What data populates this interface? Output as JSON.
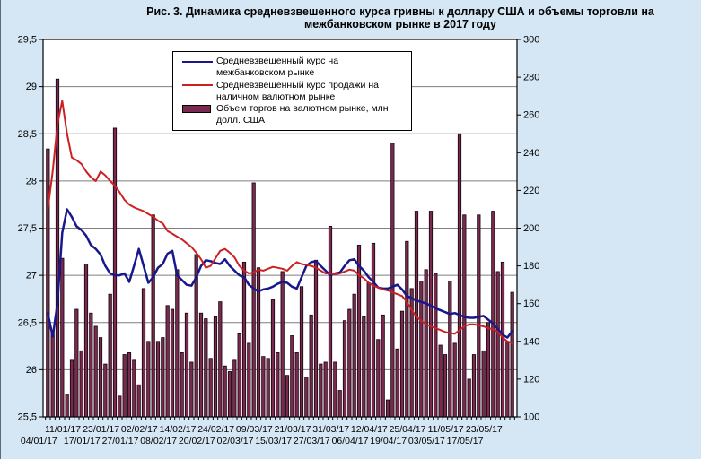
{
  "title": "Рис. 3. Динамика средневзвешенного курса гривны к доллару США и объемы торговли на межбанковском рынке в 2017 году",
  "legend": {
    "interbank_rate": "Средневзвешенный курс на межбанковском рынке",
    "cash_rate": "Средневзвешенный курс продажи на наличном валютном рынке",
    "volume": "Объем торгов на валютном рынке, млн долл. США"
  },
  "colors": {
    "background": "#d5e7f4",
    "plot_background": "#ffffff",
    "gridline": "#7f7f7f",
    "axis": "#000000",
    "interbank_line": "#18188c",
    "cash_line": "#cc2023",
    "volume_bar_fill": "#7a2950",
    "volume_bar_border": "#120309"
  },
  "chart_data": {
    "type": "combo: bar + 2 lines (dual axis)",
    "title": "Рис. 3. Динамика средневзвешенного курса гривны к доллару США и объемы торговли на межбанковском рынке в 2017 году",
    "n_points": 98,
    "left_axis": {
      "min": 25.5,
      "max": 29.5,
      "step": 0.5,
      "labels": [
        "29,5",
        "29",
        "28,5",
        "28",
        "27,5",
        "27",
        "26,5",
        "26",
        "25,5"
      ]
    },
    "right_axis": {
      "min": 100,
      "max": 300,
      "step": 20,
      "labels": [
        "300",
        "280",
        "260",
        "240",
        "220",
        "200",
        "180",
        "160",
        "140",
        "120",
        "100"
      ]
    },
    "x_labels": [
      "04/01/17",
      "11/01/17",
      "17/01/17",
      "23/01/17",
      "27/01/17",
      "02/02/17",
      "08/02/17",
      "14/02/17",
      "20/02/17",
      "24/02/17",
      "02/03/17",
      "09/03/17",
      "15/03/17",
      "21/03/17",
      "27/03/17",
      "31/03/17",
      "06/04/17",
      "12/04/17",
      "19/04/17",
      "25/04/17",
      "03/05/17",
      "11/05/17",
      "17/05/17",
      "23/05/17"
    ],
    "x_label_indices": [
      0,
      5,
      9,
      13,
      17,
      21,
      25,
      29,
      33,
      37,
      41,
      45,
      49,
      53,
      57,
      61,
      65,
      69,
      73,
      77,
      81,
      85,
      89,
      93
    ],
    "x_label_rows": [
      "lower",
      "upper",
      "lower",
      "upper",
      "lower",
      "upper",
      "lower",
      "upper",
      "lower",
      "upper",
      "lower",
      "upper",
      "lower",
      "upper",
      "lower",
      "upper",
      "lower",
      "upper",
      "lower",
      "upper",
      "lower",
      "upper",
      "lower",
      "upper"
    ],
    "series": [
      {
        "name": "Средневзвешенный курс на межбанковском рынке",
        "type": "line",
        "axis": "left",
        "color": "#18188c",
        "width": 2.5,
        "values": [
          26.6,
          26.35,
          26.7,
          27.45,
          27.7,
          27.62,
          27.52,
          27.48,
          27.42,
          27.32,
          27.28,
          27.22,
          27.1,
          27.02,
          27.0,
          27.0,
          27.02,
          26.93,
          27.1,
          27.28,
          27.1,
          26.92,
          26.98,
          27.08,
          27.12,
          27.23,
          27.26,
          27.0,
          26.95,
          26.9,
          26.89,
          26.98,
          27.1,
          27.16,
          27.15,
          27.13,
          27.12,
          27.17,
          27.1,
          27.05,
          27.0,
          26.98,
          26.9,
          26.86,
          26.83,
          26.85,
          26.86,
          26.88,
          26.91,
          26.93,
          26.92,
          26.88,
          26.86,
          26.98,
          27.1,
          27.14,
          27.15,
          27.1,
          27.05,
          27.0,
          27.02,
          27.03,
          27.1,
          27.16,
          27.17,
          27.1,
          27.05,
          26.98,
          26.93,
          26.87,
          26.86,
          26.86,
          26.88,
          26.9,
          26.85,
          26.78,
          26.76,
          26.73,
          26.72,
          26.7,
          26.68,
          26.65,
          26.63,
          26.61,
          26.59,
          26.6,
          26.58,
          26.56,
          26.55,
          26.55,
          26.56,
          26.57,
          26.53,
          26.49,
          26.43,
          26.37,
          26.34,
          26.41
        ]
      },
      {
        "name": "Средневзвешенный курс продажи на наличном валютном рынке",
        "type": "line",
        "axis": "left",
        "color": "#cc2023",
        "width": 2,
        "values": [
          27.7,
          28.1,
          28.6,
          28.85,
          28.5,
          28.25,
          28.22,
          28.18,
          28.1,
          28.04,
          28.0,
          28.1,
          28.06,
          28.0,
          27.95,
          27.88,
          27.8,
          27.75,
          27.72,
          27.7,
          27.68,
          27.65,
          27.62,
          27.58,
          27.55,
          27.47,
          27.44,
          27.41,
          27.38,
          27.34,
          27.3,
          27.24,
          27.17,
          27.08,
          27.1,
          27.18,
          27.26,
          27.28,
          27.24,
          27.19,
          27.1,
          27.05,
          27.02,
          27.03,
          27.06,
          27.05,
          27.07,
          27.09,
          27.08,
          27.07,
          27.05,
          27.1,
          27.14,
          27.12,
          27.11,
          27.1,
          27.08,
          27.05,
          27.02,
          27.02,
          27.01,
          27.02,
          27.04,
          27.06,
          27.05,
          27.0,
          26.97,
          26.92,
          26.89,
          26.87,
          26.85,
          26.84,
          26.82,
          26.8,
          26.78,
          26.72,
          26.63,
          26.56,
          26.52,
          26.48,
          26.46,
          26.44,
          26.42,
          26.4,
          26.39,
          26.38,
          26.42,
          26.46,
          26.48,
          26.48,
          26.47,
          26.46,
          26.44,
          26.43,
          26.4,
          26.34,
          26.3,
          26.28
        ]
      },
      {
        "name": "Объем торгов на валютном рынке, млн долл. США",
        "type": "bar",
        "axis": "right",
        "color": "#7a2950",
        "values": [
          242,
          146,
          279,
          184,
          112,
          130,
          157,
          135,
          181,
          155,
          148,
          142,
          128,
          165,
          253,
          111,
          133,
          134,
          130,
          117,
          168,
          140,
          207,
          140,
          142,
          159,
          157,
          178,
          134,
          155,
          129,
          186,
          155,
          152,
          131,
          153,
          161,
          127,
          124,
          130,
          144,
          182,
          139,
          224,
          179,
          132,
          131,
          162,
          134,
          177,
          122,
          143,
          134,
          169,
          121,
          154,
          183,
          128,
          129,
          201,
          129,
          114,
          151,
          157,
          165,
          191,
          153,
          171,
          192,
          141,
          154,
          109,
          245,
          136,
          156,
          193,
          168,
          209,
          172,
          178,
          209,
          176,
          138,
          133,
          172,
          139,
          250,
          207,
          120,
          133,
          207,
          135,
          150,
          209,
          177,
          182,
          140,
          166
        ]
      }
    ],
    "grid": "horizontal gridlines every 0.5 (left axis)",
    "legend_position": "inside plot, upper center-left"
  }
}
